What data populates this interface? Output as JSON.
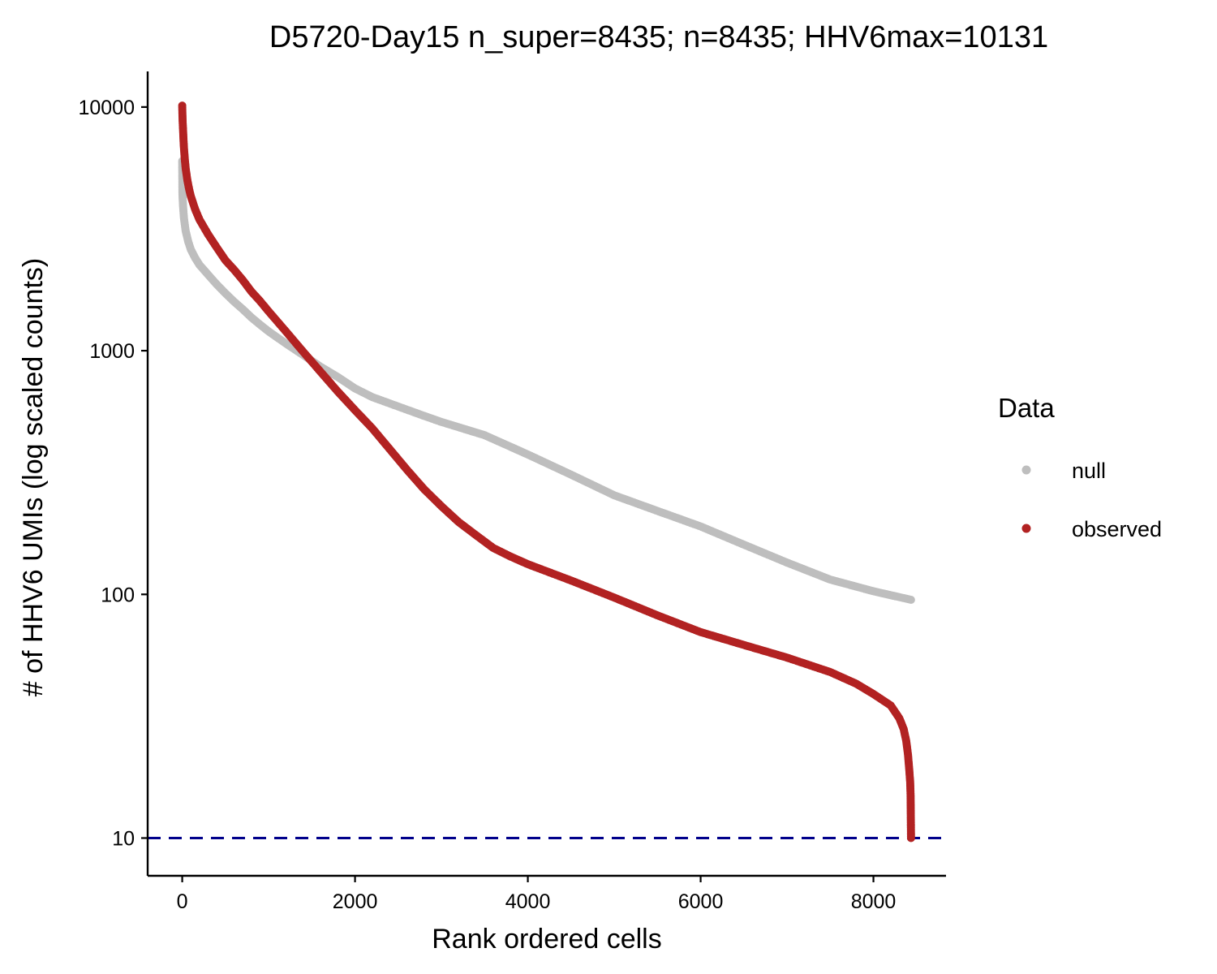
{
  "chart_data": {
    "type": "scatter",
    "title": "D5720-Day15 n_super=8435; n=8435; HHV6max=10131",
    "xlabel": "Rank ordered cells",
    "ylabel": "# of HHV6 UMIs (log scaled counts)",
    "y_scale": "log10",
    "xlim": [
      -400,
      8840
    ],
    "ylim": [
      7.0,
      14000
    ],
    "x_ticks": [
      0,
      2000,
      4000,
      6000,
      8000
    ],
    "x_tick_labels": [
      "0",
      "2000",
      "4000",
      "6000",
      "8000"
    ],
    "y_ticks": [
      10,
      100,
      1000,
      10000
    ],
    "y_tick_labels": [
      "10",
      "100",
      "1000",
      "10000"
    ],
    "grid": false,
    "reference_line": {
      "y": 10,
      "style": "dashed",
      "color": "#00008b"
    },
    "legend": {
      "title": "Data",
      "position": "right",
      "entries": [
        {
          "label": "null",
          "color": "#bebebe"
        },
        {
          "label": "observed",
          "color": "#b22222"
        }
      ]
    },
    "series": [
      {
        "name": "null",
        "color": "#bebebe",
        "points": [
          [
            0,
            6000
          ],
          [
            2,
            4500
          ],
          [
            5,
            4200
          ],
          [
            10,
            3900
          ],
          [
            20,
            3500
          ],
          [
            40,
            3100
          ],
          [
            70,
            2800
          ],
          [
            100,
            2600
          ],
          [
            150,
            2400
          ],
          [
            200,
            2250
          ],
          [
            300,
            2050
          ],
          [
            400,
            1870
          ],
          [
            500,
            1720
          ],
          [
            600,
            1590
          ],
          [
            700,
            1480
          ],
          [
            800,
            1370
          ],
          [
            900,
            1280
          ],
          [
            1000,
            1200
          ],
          [
            1200,
            1070
          ],
          [
            1400,
            960
          ],
          [
            1600,
            860
          ],
          [
            1800,
            780
          ],
          [
            2000,
            700
          ],
          [
            2200,
            645
          ],
          [
            2500,
            590
          ],
          [
            2800,
            540
          ],
          [
            3000,
            510
          ],
          [
            3500,
            450
          ],
          [
            4000,
            375
          ],
          [
            4500,
            310
          ],
          [
            5000,
            255
          ],
          [
            5500,
            220
          ],
          [
            6000,
            190
          ],
          [
            6500,
            160
          ],
          [
            7000,
            135
          ],
          [
            7500,
            115
          ],
          [
            8000,
            103
          ],
          [
            8435,
            95
          ]
        ]
      },
      {
        "name": "observed",
        "color": "#b22222",
        "points": [
          [
            0,
            10131
          ],
          [
            2,
            9400
          ],
          [
            5,
            8700
          ],
          [
            10,
            8000
          ],
          [
            15,
            7300
          ],
          [
            20,
            6800
          ],
          [
            30,
            6100
          ],
          [
            40,
            5600
          ],
          [
            60,
            5000
          ],
          [
            80,
            4600
          ],
          [
            100,
            4300
          ],
          [
            150,
            3800
          ],
          [
            200,
            3450
          ],
          [
            300,
            3000
          ],
          [
            400,
            2650
          ],
          [
            500,
            2350
          ],
          [
            600,
            2150
          ],
          [
            700,
            1950
          ],
          [
            800,
            1750
          ],
          [
            900,
            1600
          ],
          [
            1000,
            1450
          ],
          [
            1200,
            1200
          ],
          [
            1400,
            990
          ],
          [
            1600,
            820
          ],
          [
            1800,
            680
          ],
          [
            2000,
            570
          ],
          [
            2200,
            480
          ],
          [
            2400,
            395
          ],
          [
            2600,
            325
          ],
          [
            2800,
            270
          ],
          [
            3000,
            230
          ],
          [
            3200,
            198
          ],
          [
            3400,
            175
          ],
          [
            3600,
            155
          ],
          [
            3800,
            143
          ],
          [
            4000,
            133
          ],
          [
            4500,
            114
          ],
          [
            5000,
            97
          ],
          [
            5500,
            82
          ],
          [
            6000,
            70
          ],
          [
            6500,
            62
          ],
          [
            7000,
            55
          ],
          [
            7500,
            48
          ],
          [
            7800,
            43
          ],
          [
            8000,
            39
          ],
          [
            8200,
            35
          ],
          [
            8300,
            31
          ],
          [
            8350,
            28
          ],
          [
            8380,
            25
          ],
          [
            8400,
            22
          ],
          [
            8415,
            19
          ],
          [
            8425,
            17
          ],
          [
            8430,
            15
          ],
          [
            8435,
            10
          ]
        ]
      }
    ]
  }
}
